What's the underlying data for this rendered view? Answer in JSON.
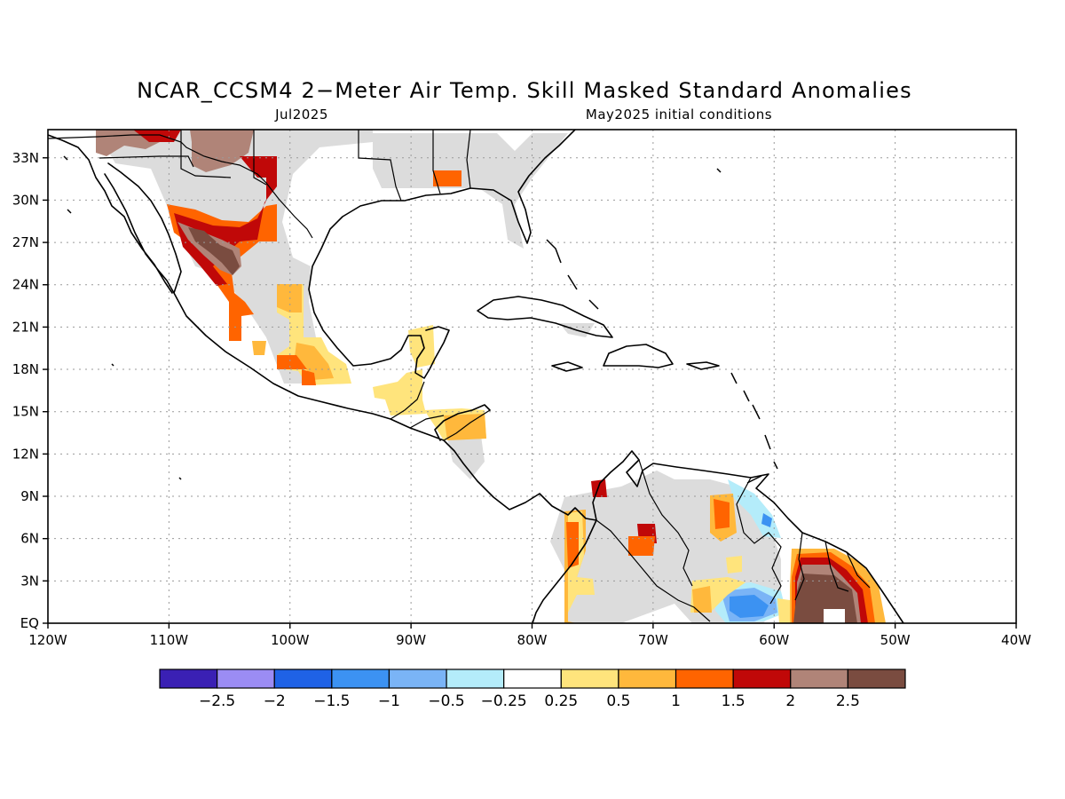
{
  "title": "NCAR_CCSM4 2−Meter Air Temp. Skill Masked Standard Anomalies",
  "subtitle_left": "Jul2025",
  "subtitle_right": "May2025 initial conditions",
  "map": {
    "lon_range": [
      -120,
      -40
    ],
    "lat_range": [
      0,
      35
    ],
    "lon_ticks": [
      "120W",
      "110W",
      "100W",
      "90W",
      "80W",
      "70W",
      "60W",
      "50W",
      "40W"
    ],
    "lat_ticks": [
      "33N",
      "30N",
      "27N",
      "24N",
      "21N",
      "18N",
      "15N",
      "12N",
      "9N",
      "6N",
      "3N",
      "EQ"
    ],
    "grid": true,
    "skill_mask_color": "#dcdcdc"
  },
  "colorbar": {
    "labels": [
      "−2.5",
      "−2",
      "−1.5",
      "−1",
      "−0.5",
      "−0.25",
      "0.25",
      "0.5",
      "1",
      "1.5",
      "2",
      "2.5"
    ],
    "colors": [
      "#3a20b4",
      "#9b8cf4",
      "#1f62e6",
      "#3c92f2",
      "#7ab4f6",
      "#b4ecfa",
      "#ffffff",
      "#ffe47c",
      "#ffb83c",
      "#ff6400",
      "#c00808",
      "#b08478",
      "#7a4c40"
    ]
  }
}
